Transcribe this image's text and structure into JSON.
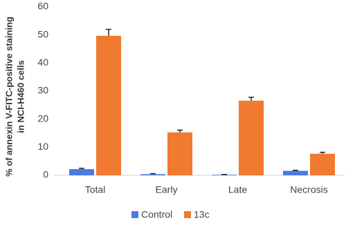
{
  "chart_data": {
    "type": "bar",
    "y_label": [
      "% of annexin V-FITC-positive staining",
      "in NCI-H460 cells"
    ],
    "categories": [
      "Total",
      "Early",
      "Late",
      "Necrosis"
    ],
    "series": [
      {
        "name": "Control",
        "color": "#4a7be0",
        "values": [
          2.2,
          0.4,
          0.2,
          1.6
        ],
        "errors": [
          0.3,
          0.2,
          0.1,
          0.2
        ]
      },
      {
        "name": "13c",
        "color": "#f07a30",
        "values": [
          49.7,
          15.3,
          26.6,
          7.7
        ],
        "errors": [
          2.3,
          0.8,
          1.2,
          0.5
        ]
      }
    ],
    "ylim": [
      0,
      60
    ],
    "yticks": [
      0,
      10,
      20,
      30,
      40,
      50,
      60
    ],
    "legend": "bottom"
  }
}
